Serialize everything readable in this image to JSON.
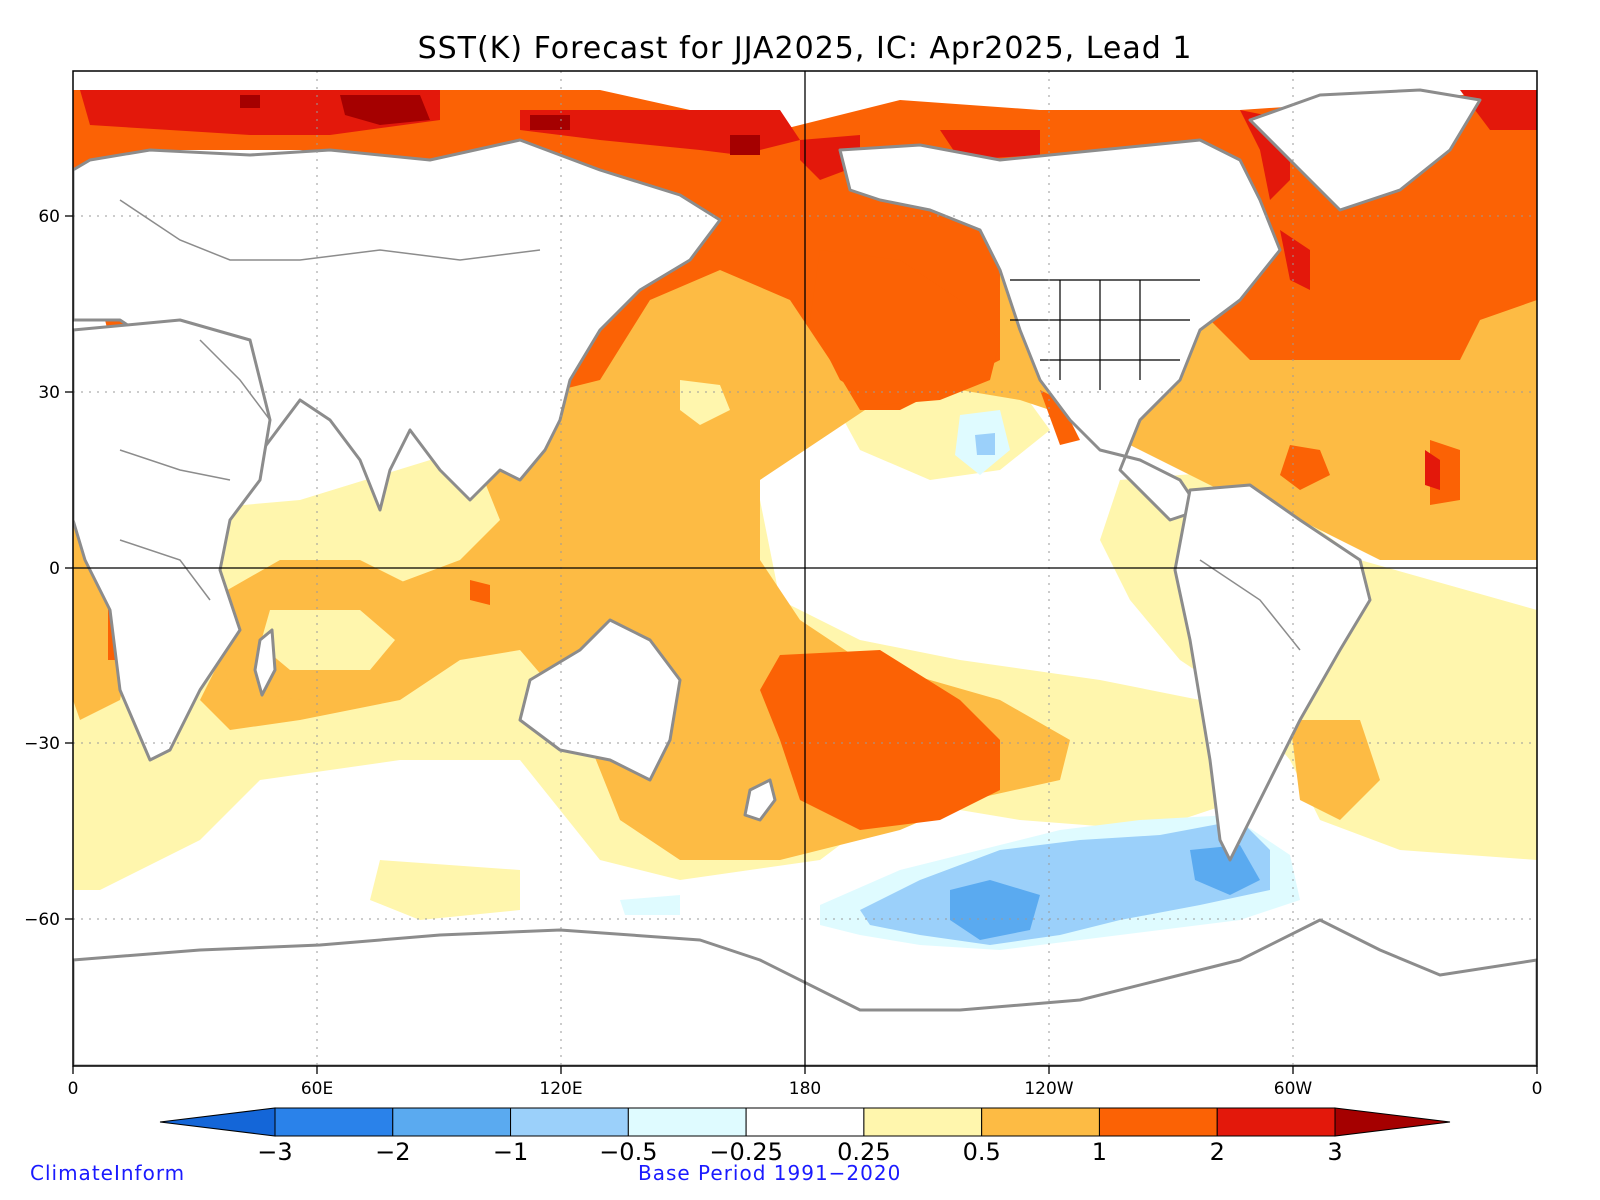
{
  "title": "SST(K) Forecast for JJA2025, IC: Apr2025, Lead 1",
  "x_ticks": [
    "0",
    "60E",
    "120E",
    "180",
    "120W",
    "60W",
    "0"
  ],
  "y_ticks": [
    "60",
    "30",
    "0",
    "−30",
    "−60"
  ],
  "colorbar": {
    "labels": [
      "−3",
      "−2",
      "−1",
      "−0.5",
      "−0.25",
      "0.25",
      "0.5",
      "1",
      "2",
      "3"
    ],
    "colors": [
      "#1466d8",
      "#2a82ea",
      "#5aaaf0",
      "#9bd0fa",
      "#dffbff",
      "#ffffff",
      "#fff6ad",
      "#fdbb44",
      "#fb6205",
      "#e3180b",
      "#a50000"
    ]
  },
  "footer": {
    "left": "ClimateInform",
    "right": "Base Period 1991−2020"
  },
  "map_data": {
    "variable": "SST anomaly (K)",
    "season": "JJA2025",
    "initial_condition": "Apr2025",
    "lead": 1,
    "contour_levels": [
      -3,
      -2,
      -1,
      -0.5,
      -0.25,
      0.25,
      0.5,
      1,
      2,
      3
    ],
    "lon_range": [
      0,
      360
    ],
    "lat_range": [
      -90,
      90
    ]
  }
}
